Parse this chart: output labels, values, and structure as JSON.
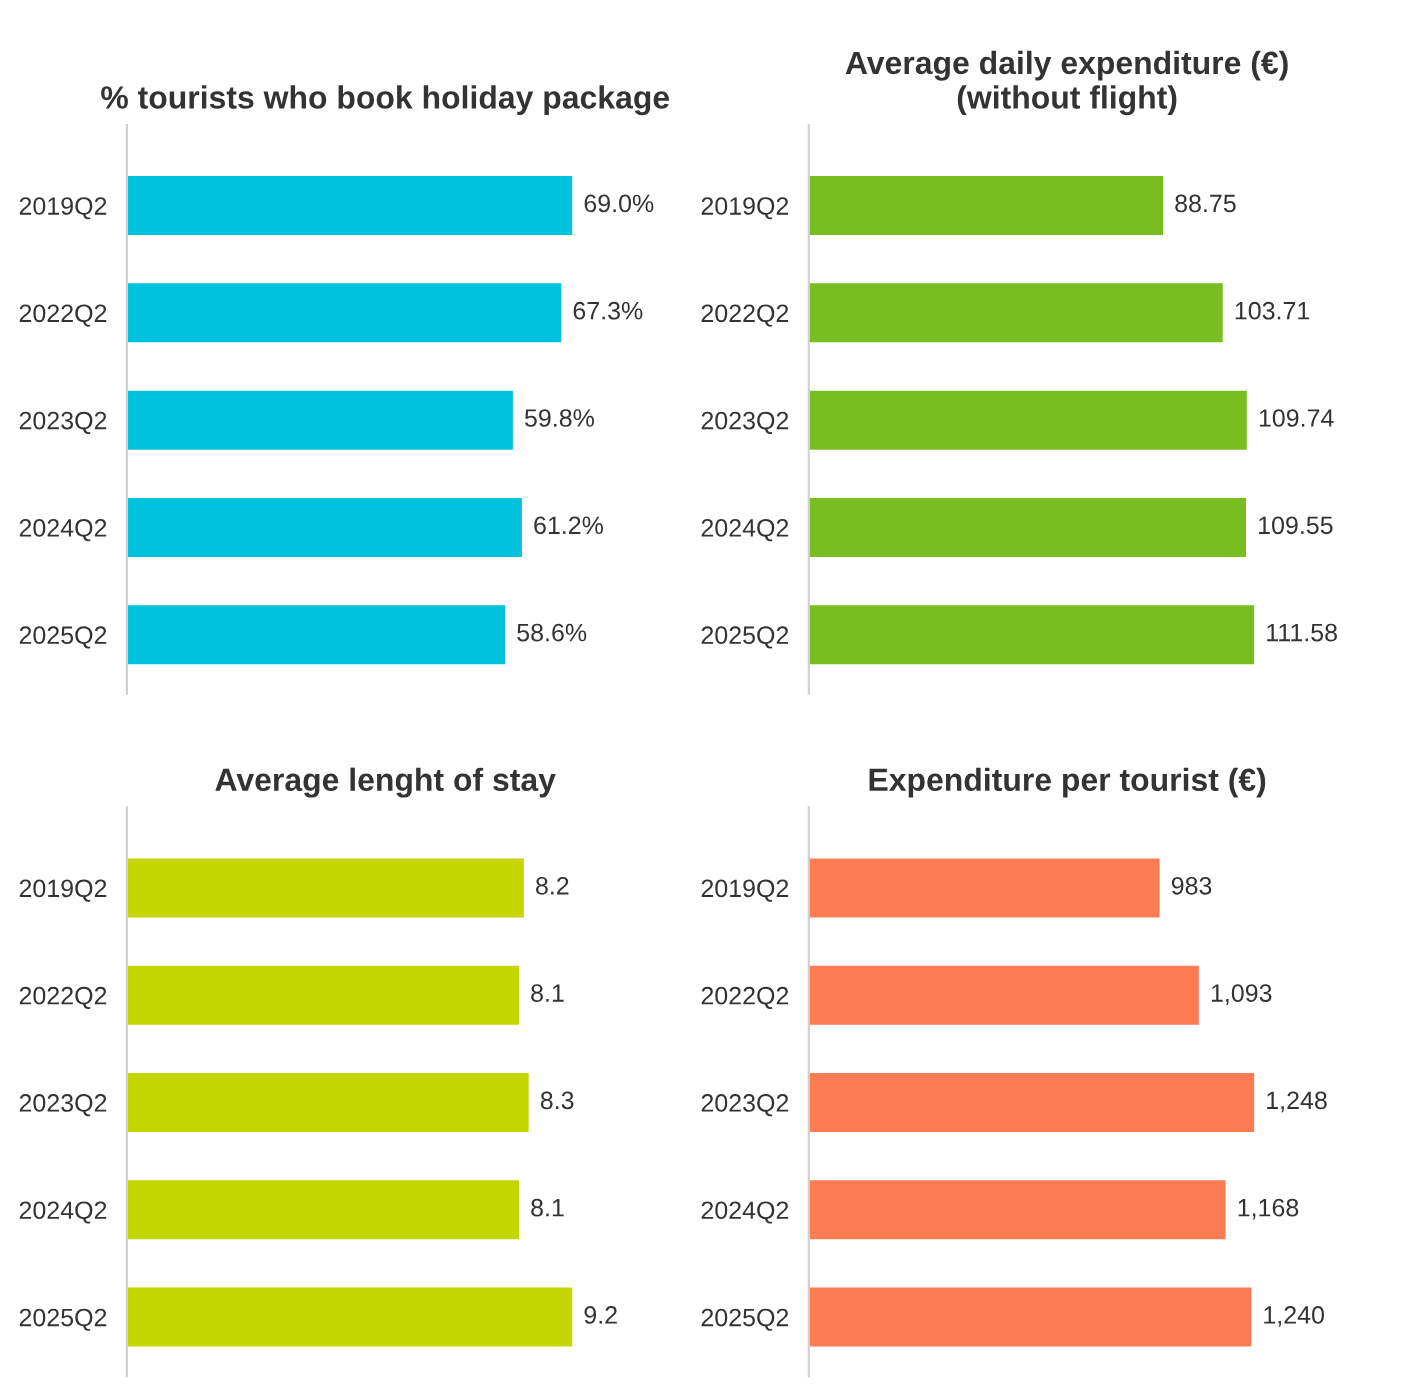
{
  "chart_data": [
    {
      "type": "bar",
      "orientation": "horizontal",
      "title": "% tourists who book holiday package",
      "categories": [
        "2019Q2",
        "2022Q2",
        "2023Q2",
        "2024Q2",
        "2025Q2"
      ],
      "values": [
        69.0,
        67.3,
        59.8,
        61.2,
        58.6
      ],
      "color": "#00c2de",
      "value_labels": [
        "69.0%",
        "67.3%",
        "59.8%",
        "61.2%",
        "58.6%"
      ],
      "tick_labels": "y",
      "grid": false,
      "legend": false
    },
    {
      "type": "bar",
      "orientation": "horizontal",
      "title": "Average daily expenditure (€)\n(without flight)",
      "categories": [
        "2019Q2",
        "2022Q2",
        "2023Q2",
        "2024Q2",
        "2025Q2"
      ],
      "values": [
        88.75,
        103.71,
        109.74,
        109.55,
        111.58
      ],
      "color": "#78be20",
      "value_labels": [
        "88.75",
        "103.71",
        "109.74",
        "109.55",
        "111.58"
      ],
      "tick_labels": "y",
      "grid": false,
      "legend": false
    },
    {
      "type": "bar",
      "orientation": "horizontal",
      "title": "Average lenght of stay",
      "categories": [
        "2019Q2",
        "2022Q2",
        "2023Q2",
        "2024Q2",
        "2025Q2"
      ],
      "values": [
        8.2,
        8.1,
        8.3,
        8.1,
        9.2
      ],
      "color": "#c4d600",
      "value_labels": [
        "8.2",
        "8.1",
        "8.3",
        "8.1",
        "9.2"
      ],
      "tick_labels": "y",
      "grid": false,
      "legend": false
    },
    {
      "type": "bar",
      "orientation": "horizontal",
      "title": "Expenditure per tourist (€)",
      "categories": [
        "2019Q2",
        "2022Q2",
        "2023Q2",
        "2024Q2",
        "2025Q2"
      ],
      "values": [
        983,
        1093,
        1248,
        1168,
        1240
      ],
      "color": "#ff7b52",
      "value_labels": [
        "983",
        "1,093",
        "1,248",
        "1,168",
        "1,240"
      ],
      "tick_labels": "y",
      "grid": false,
      "legend": false
    }
  ]
}
